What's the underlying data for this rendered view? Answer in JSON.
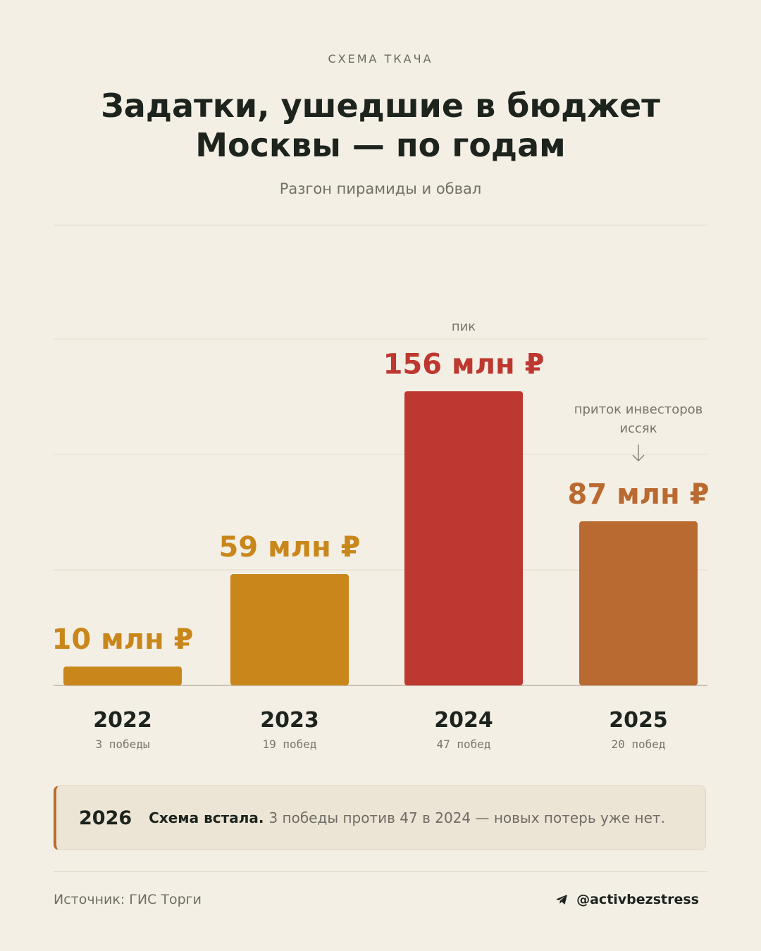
{
  "header": {
    "kicker": "СХЕМА ТКАЧА",
    "title": "Задатки, ушедшие в бюджет Москвы — по годам",
    "subtitle": "Разгон пирамиды и обвал"
  },
  "chart_data": {
    "type": "bar",
    "categories": [
      "2022",
      "2023",
      "2024",
      "2025"
    ],
    "values": [
      10,
      59,
      156,
      87
    ],
    "unit": "млн ₽",
    "value_labels": [
      "10 млн ₽",
      "59 млн ₽",
      "156 млн ₽",
      "87 млн ₽"
    ],
    "sublabels": [
      "3  победы",
      "19  побед",
      "47  побед",
      "20  побед"
    ],
    "colors": [
      "#c9871b",
      "#c9871b",
      "#bd3830",
      "#b96a31"
    ],
    "ylim": [
      0,
      183
    ],
    "grid": true,
    "annotations": {
      "peak": "пик",
      "drop_line1": "приток инвесторов",
      "drop_line2": "иссяк"
    }
  },
  "callout": {
    "year": "2026",
    "bold": "Схема встала.",
    "text": "3 победы против 47 в 2024 — новых потерь уже нет."
  },
  "footer": {
    "source": "Источник: ГИС Торги",
    "handle": "@activbezstress",
    "handle_icon": "telegram-icon"
  }
}
